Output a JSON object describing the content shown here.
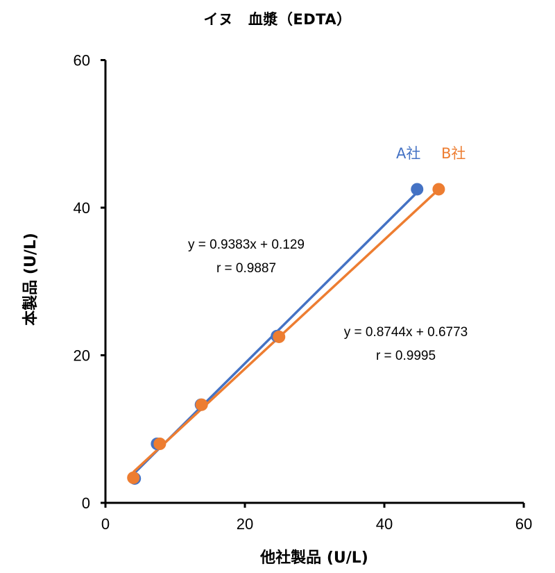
{
  "chart_data": {
    "type": "scatter",
    "title": "イヌ　血漿（EDTA）",
    "xlabel": "他社製品 (U/L)",
    "ylabel": "本製品 (U/L)",
    "xlim": [
      0,
      60
    ],
    "ylim": [
      0,
      60
    ],
    "x_ticks": [
      "0",
      "20",
      "40",
      "60"
    ],
    "y_ticks": [
      "0",
      "20",
      "40",
      "60"
    ],
    "grid": false,
    "legend_position": "upper right (inline labels)",
    "series": [
      {
        "name": "A社",
        "color": "#4472C4",
        "points": [
          {
            "x": 4.2,
            "y": 3.3
          },
          {
            "x": 7.4,
            "y": 8.0
          },
          {
            "x": 13.7,
            "y": 13.3
          },
          {
            "x": 24.6,
            "y": 22.6
          },
          {
            "x": 44.7,
            "y": 42.5
          }
        ],
        "regression": {
          "slope": 0.9383,
          "intercept": 0.129,
          "equation": "y = 0.9383x + 0.129",
          "r": "r = 0.9887"
        }
      },
      {
        "name": "B社",
        "color": "#ED7D31",
        "points": [
          {
            "x": 4.0,
            "y": 3.4
          },
          {
            "x": 7.8,
            "y": 8.0
          },
          {
            "x": 13.8,
            "y": 13.3
          },
          {
            "x": 24.9,
            "y": 22.5
          },
          {
            "x": 47.8,
            "y": 42.5
          }
        ],
        "regression": {
          "slope": 0.8744,
          "intercept": 0.6773,
          "equation": "y = 0.8744x + 0.6773",
          "r": "r = 0.9995"
        }
      }
    ]
  },
  "legend": {
    "a_label": "A社",
    "b_label": "B社"
  },
  "annotations": {
    "a_equation": "y = 0.9383x + 0.129",
    "a_r": "r = 0.9887",
    "b_equation": "y = 0.8744x + 0.6773",
    "b_r": "r = 0.9995"
  }
}
